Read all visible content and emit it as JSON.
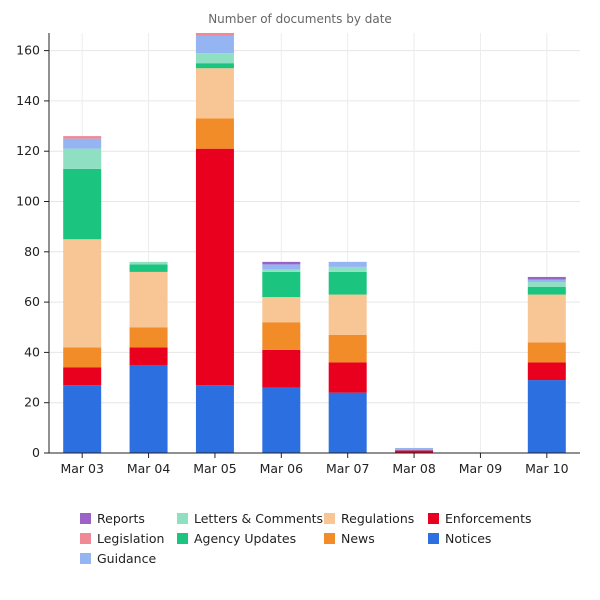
{
  "chart_data": {
    "type": "bar",
    "stacked": true,
    "title": "Number of documents by date",
    "xlabel": "",
    "ylabel": "",
    "ylim": [
      0,
      167
    ],
    "yticks": [
      0,
      20,
      40,
      60,
      80,
      100,
      120,
      140,
      160
    ],
    "grid": true,
    "legend_position": "bottom",
    "categories": [
      "Mar 03",
      "Mar 04",
      "Mar 05",
      "Mar 06",
      "Mar 07",
      "Mar 08",
      "Mar 09",
      "Mar 10"
    ],
    "series": [
      {
        "name": "Notices",
        "color": "#2c6fe0",
        "values": [
          27,
          35,
          27,
          26,
          24,
          0,
          0,
          29
        ]
      },
      {
        "name": "Enforcements",
        "color": "#e8001e",
        "values": [
          7,
          7,
          94,
          15,
          12,
          1,
          0,
          7
        ]
      },
      {
        "name": "News",
        "color": "#f28c28",
        "values": [
          8,
          8,
          12,
          11,
          11,
          0,
          0,
          8
        ]
      },
      {
        "name": "Regulations",
        "color": "#f8c594",
        "values": [
          43,
          22,
          20,
          10,
          16,
          0,
          0,
          19
        ]
      },
      {
        "name": "Agency Updates",
        "color": "#1bc47f",
        "values": [
          28,
          3,
          2,
          10,
          9,
          0,
          0,
          3
        ]
      },
      {
        "name": "Letters & Comments",
        "color": "#8fe0c3",
        "values": [
          8,
          1,
          4,
          1,
          2,
          0,
          0,
          2
        ]
      },
      {
        "name": "Guidance",
        "color": "#94b4f2",
        "values": [
          4,
          0,
          7,
          2,
          2,
          1,
          0,
          1
        ]
      },
      {
        "name": "Legislation",
        "color": "#f08895",
        "values": [
          1,
          0,
          1,
          0,
          0,
          0,
          0,
          0
        ]
      },
      {
        "name": "Reports",
        "color": "#9b62c7",
        "values": [
          0,
          0,
          0,
          1,
          0,
          0,
          0,
          1
        ]
      }
    ],
    "legend_order": [
      "Reports",
      "Letters & Comments",
      "Regulations",
      "Enforcements",
      "Legislation",
      "Agency Updates",
      "News",
      "Notices",
      "Guidance"
    ]
  }
}
